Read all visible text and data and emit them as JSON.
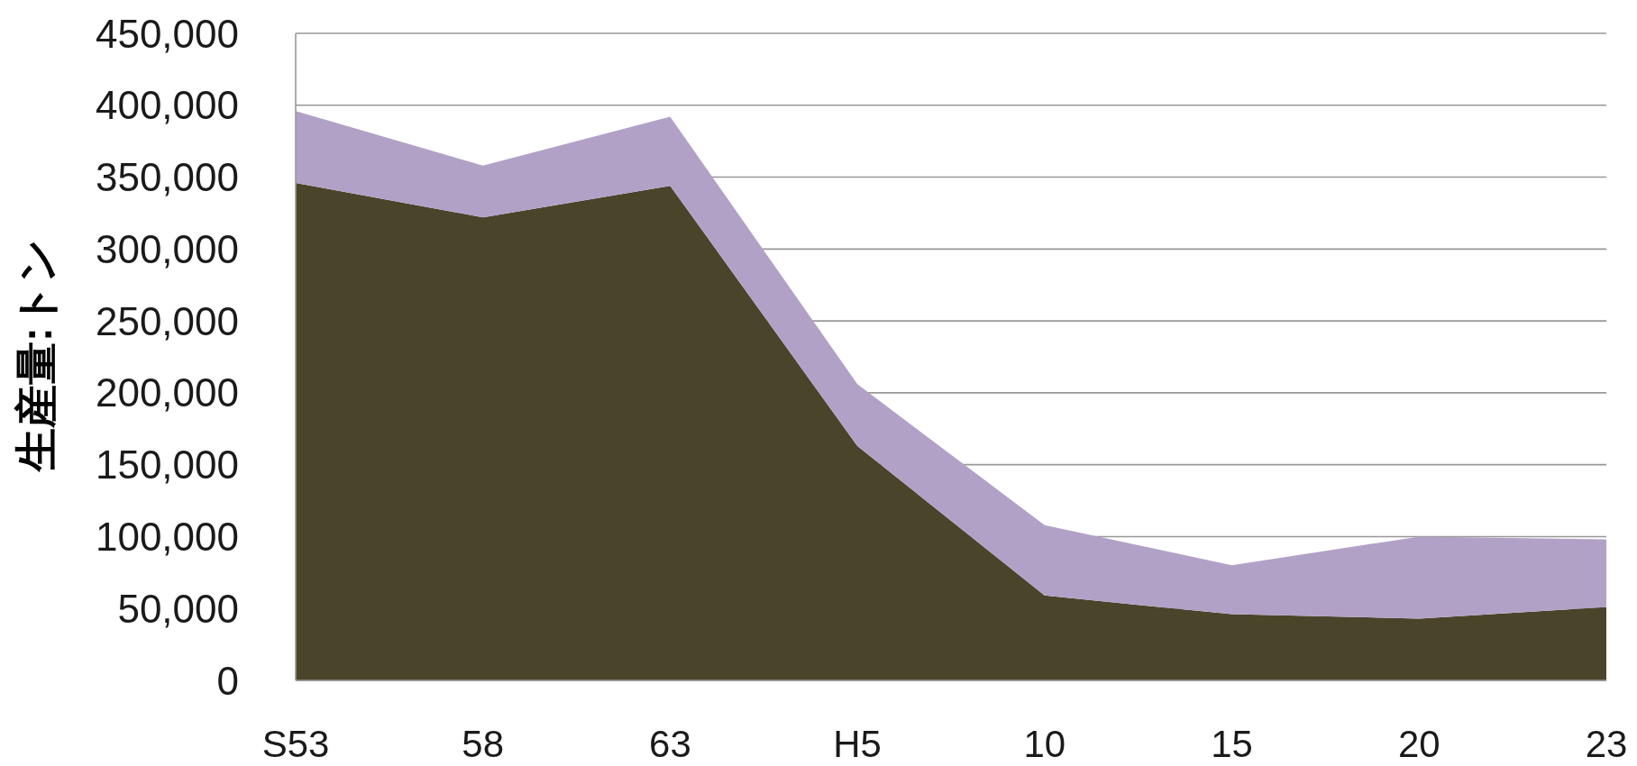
{
  "chart_data": {
    "type": "area",
    "stacked": true,
    "categories": [
      "S53",
      "58",
      "63",
      "H5",
      "10",
      "15",
      "20",
      "23"
    ],
    "series": [
      {
        "color": "#4a442a",
        "values": [
          346000,
          322000,
          344000,
          163000,
          59000,
          46000,
          43000,
          51000
        ]
      },
      {
        "color": "#b2a1c7",
        "values": [
          50000,
          36000,
          48000,
          43000,
          49000,
          34000,
          57000,
          47000
        ]
      }
    ],
    "ylabel": "生産量:トン",
    "ylim": [
      0,
      450000
    ],
    "yticks": [
      {
        "value": 0,
        "label": "0"
      },
      {
        "value": 50000,
        "label": "50,000"
      },
      {
        "value": 100000,
        "label": "100,000"
      },
      {
        "value": 150000,
        "label": "150,000"
      },
      {
        "value": 200000,
        "label": "200,000"
      },
      {
        "value": 250000,
        "label": "250,000"
      },
      {
        "value": 300000,
        "label": "300,000"
      },
      {
        "value": 350000,
        "label": "350,000"
      },
      {
        "value": 400000,
        "label": "400,000"
      },
      {
        "value": 450000,
        "label": "450,000"
      }
    ],
    "grid": "y"
  }
}
